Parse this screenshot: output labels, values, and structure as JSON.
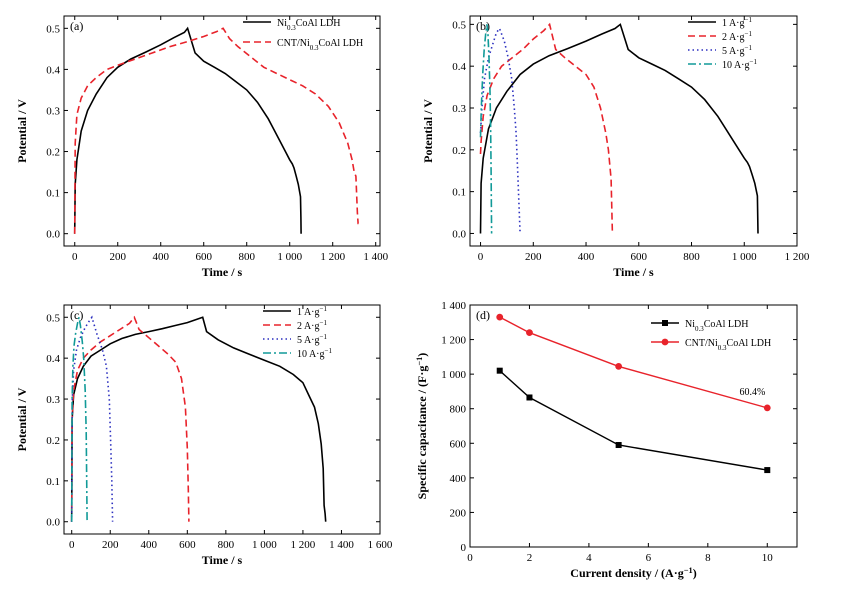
{
  "chart_data": [
    {
      "id": "a",
      "type": "line",
      "panel_label": "(a)",
      "xlabel": "Time / s",
      "ylabel": "Potential / V",
      "xlim": [
        -50,
        1420
      ],
      "ylim": [
        -0.03,
        0.53
      ],
      "xticks": [
        0,
        200,
        400,
        600,
        800,
        1000,
        1200,
        1400
      ],
      "xtick_labels": [
        "0",
        "200",
        "400",
        "600",
        "800",
        "1 000",
        "1 200",
        "1 400"
      ],
      "yticks": [
        0.0,
        0.1,
        0.2,
        0.3,
        0.4,
        0.5
      ],
      "ytick_labels": [
        "0.0",
        "0.1",
        "0.2",
        "0.3",
        "0.4",
        "0.5"
      ],
      "legend_position": "top-right",
      "series": [
        {
          "name": "Ni0.3CoAl LDH",
          "name_parts": [
            [
              "Ni",
              false
            ],
            [
              "0.3",
              true
            ],
            [
              "CoAl LDH",
              false
            ]
          ],
          "color": "#000000",
          "dash": "solid",
          "x": [
            0,
            2,
            10,
            30,
            60,
            100,
            150,
            200,
            260,
            330,
            400,
            460,
            510,
            525,
            560,
            600,
            650,
            700,
            750,
            800,
            850,
            900,
            950,
            980,
            1000,
            1012,
            1020,
            1030,
            1040,
            1050,
            1052,
            1053
          ],
          "y": [
            0.0,
            0.12,
            0.18,
            0.25,
            0.3,
            0.34,
            0.38,
            0.405,
            0.425,
            0.442,
            0.46,
            0.477,
            0.49,
            0.5,
            0.44,
            0.42,
            0.405,
            0.39,
            0.37,
            0.35,
            0.32,
            0.28,
            0.23,
            0.2,
            0.18,
            0.17,
            0.16,
            0.14,
            0.12,
            0.09,
            0.04,
            0.0
          ]
        },
        {
          "name": "CNT/Ni0.3CoAl LDH",
          "name_parts": [
            [
              "CNT/Ni",
              false
            ],
            [
              "0.3",
              true
            ],
            [
              "CoAl LDH",
              false
            ]
          ],
          "color": "#e8232b",
          "dash": "dashed",
          "x": [
            0,
            2,
            10,
            30,
            60,
            100,
            150,
            200,
            280,
            360,
            440,
            520,
            600,
            660,
            690,
            720,
            760,
            820,
            880,
            940,
            1000,
            1060,
            1120,
            1180,
            1230,
            1270,
            1290,
            1300,
            1308,
            1315,
            1318,
            1320
          ],
          "y": [
            0.0,
            0.22,
            0.29,
            0.33,
            0.36,
            0.38,
            0.4,
            0.41,
            0.425,
            0.44,
            0.455,
            0.467,
            0.48,
            0.492,
            0.5,
            0.475,
            0.455,
            0.43,
            0.405,
            0.39,
            0.375,
            0.36,
            0.34,
            0.31,
            0.27,
            0.22,
            0.18,
            0.15,
            0.14,
            0.05,
            0.025,
            0.025
          ]
        }
      ]
    },
    {
      "id": "b",
      "type": "line",
      "panel_label": "(b)",
      "xlabel": "Time / s",
      "ylabel": "Potential / V",
      "xlim": [
        -40,
        1200
      ],
      "ylim": [
        -0.03,
        0.52
      ],
      "xticks": [
        0,
        200,
        400,
        600,
        800,
        1000,
        1200
      ],
      "xtick_labels": [
        "0",
        "200",
        "400",
        "600",
        "800",
        "1 000",
        "1 200"
      ],
      "yticks": [
        0.0,
        0.1,
        0.2,
        0.3,
        0.4,
        0.5
      ],
      "ytick_labels": [
        "0.0",
        "0.1",
        "0.2",
        "0.3",
        "0.4",
        "0.5"
      ],
      "legend_position": "top-right",
      "series": [
        {
          "name": "1 A·g⁻¹",
          "name_parts": [
            [
              "1 A·g",
              false
            ],
            [
              "−1",
              "sup"
            ]
          ],
          "color": "#000000",
          "dash": "solid",
          "x": [
            0,
            2,
            10,
            30,
            60,
            100,
            150,
            200,
            260,
            330,
            400,
            460,
            510,
            530,
            560,
            600,
            650,
            700,
            750,
            800,
            850,
            900,
            950,
            980,
            1000,
            1012,
            1020,
            1030,
            1040,
            1050,
            1052
          ],
          "y": [
            0.0,
            0.12,
            0.18,
            0.25,
            0.3,
            0.34,
            0.38,
            0.405,
            0.425,
            0.442,
            0.46,
            0.477,
            0.49,
            0.5,
            0.44,
            0.42,
            0.405,
            0.39,
            0.37,
            0.35,
            0.32,
            0.28,
            0.23,
            0.2,
            0.18,
            0.17,
            0.16,
            0.14,
            0.12,
            0.09,
            0.0
          ]
        },
        {
          "name": "2 A·g⁻¹",
          "name_parts": [
            [
              "2 A·g",
              false
            ],
            [
              "−1",
              "sup"
            ]
          ],
          "color": "#e8232b",
          "dash": "dashed",
          "x": [
            0,
            2,
            10,
            25,
            50,
            80,
            120,
            160,
            200,
            240,
            262,
            285,
            320,
            360,
            400,
            430,
            455,
            475,
            485,
            495,
            500
          ],
          "y": [
            0.19,
            0.22,
            0.28,
            0.33,
            0.37,
            0.4,
            0.42,
            0.44,
            0.465,
            0.485,
            0.5,
            0.44,
            0.42,
            0.4,
            0.38,
            0.35,
            0.3,
            0.24,
            0.2,
            0.13,
            0.0
          ]
        },
        {
          "name": "5 A·g⁻¹",
          "name_parts": [
            [
              "5 A·g",
              false
            ],
            [
              "−1",
              "sup"
            ]
          ],
          "color": "#2b2fbf",
          "dash": "dotted",
          "x": [
            0,
            5,
            15,
            30,
            45,
            60,
            72,
            90,
            105,
            118,
            128,
            135,
            140,
            145,
            150
          ],
          "y": [
            0.24,
            0.3,
            0.37,
            0.42,
            0.45,
            0.48,
            0.49,
            0.46,
            0.42,
            0.37,
            0.3,
            0.24,
            0.16,
            0.08,
            0.0
          ]
        },
        {
          "name": "10 A·g⁻¹",
          "name_parts": [
            [
              "10 A·g",
              false
            ],
            [
              "−1",
              "sup"
            ]
          ],
          "color": "#119a98",
          "dash": "dashdot",
          "x": [
            0,
            3,
            8,
            14,
            20,
            24,
            28,
            32,
            36,
            38,
            40,
            42
          ],
          "y": [
            0.23,
            0.3,
            0.38,
            0.44,
            0.48,
            0.5,
            0.48,
            0.42,
            0.34,
            0.26,
            0.15,
            0.0
          ]
        }
      ]
    },
    {
      "id": "c",
      "type": "line",
      "panel_label": "(c)",
      "xlabel": "Time / s",
      "ylabel": "Potential / V",
      "xlim": [
        -40,
        1600
      ],
      "ylim": [
        -0.03,
        0.53
      ],
      "xticks": [
        0,
        200,
        400,
        600,
        800,
        1000,
        1200,
        1400,
        1600
      ],
      "xtick_labels": [
        "0",
        "200",
        "400",
        "600",
        "800",
        "1 000",
        "1 200",
        "1 400",
        "1 600"
      ],
      "yticks": [
        0.0,
        0.1,
        0.2,
        0.3,
        0.4,
        0.5
      ],
      "ytick_labels": [
        "0.0",
        "0.1",
        "0.2",
        "0.3",
        "0.4",
        "0.5"
      ],
      "legend_position": "top-right",
      "series": [
        {
          "name": "1 A·g⁻¹",
          "name_parts": [
            [
              "1 A·g",
              false
            ],
            [
              "−1",
              "sup"
            ]
          ],
          "color": "#000000",
          "dash": "solid",
          "x": [
            0,
            2,
            10,
            30,
            60,
            100,
            150,
            200,
            260,
            330,
            400,
            470,
            540,
            600,
            650,
            680,
            700,
            760,
            840,
            920,
            1000,
            1080,
            1150,
            1200,
            1230,
            1260,
            1280,
            1295,
            1305,
            1310,
            1315,
            1318
          ],
          "y": [
            0.0,
            0.25,
            0.31,
            0.35,
            0.38,
            0.405,
            0.42,
            0.435,
            0.448,
            0.458,
            0.465,
            0.472,
            0.48,
            0.487,
            0.495,
            0.5,
            0.465,
            0.445,
            0.425,
            0.41,
            0.395,
            0.38,
            0.36,
            0.34,
            0.31,
            0.28,
            0.24,
            0.19,
            0.13,
            0.04,
            0.02,
            0.0
          ]
        },
        {
          "name": "2 A·g⁻¹",
          "name_parts": [
            [
              "2 A·g",
              false
            ],
            [
              "−1",
              "sup"
            ]
          ],
          "color": "#e8232b",
          "dash": "dashed",
          "x": [
            0,
            2,
            10,
            30,
            60,
            100,
            150,
            200,
            250,
            300,
            325,
            350,
            400,
            450,
            500,
            540,
            570,
            590,
            600,
            605,
            608
          ],
          "y": [
            0.0,
            0.25,
            0.32,
            0.37,
            0.4,
            0.42,
            0.44,
            0.455,
            0.47,
            0.485,
            0.5,
            0.47,
            0.45,
            0.43,
            0.41,
            0.39,
            0.35,
            0.28,
            0.18,
            0.08,
            0.0
          ]
        },
        {
          "name": "5 A·g⁻¹",
          "name_parts": [
            [
              "5 A·g",
              false
            ],
            [
              "−1",
              "sup"
            ]
          ],
          "color": "#2b2fbf",
          "dash": "dotted",
          "x": [
            0,
            3,
            10,
            25,
            45,
            70,
            90,
            105,
            130,
            160,
            180,
            195,
            202,
            208,
            212
          ],
          "y": [
            0.0,
            0.3,
            0.37,
            0.42,
            0.45,
            0.475,
            0.49,
            0.5,
            0.46,
            0.42,
            0.38,
            0.3,
            0.2,
            0.1,
            0.0
          ]
        },
        {
          "name": "10 A·g⁻¹",
          "name_parts": [
            [
              "10 A·g",
              false
            ],
            [
              "−1",
              "sup"
            ]
          ],
          "color": "#119a98",
          "dash": "dashdot",
          "x": [
            0,
            2,
            6,
            12,
            20,
            30,
            38,
            45,
            55,
            62,
            70,
            75,
            78,
            80
          ],
          "y": [
            0.0,
            0.3,
            0.38,
            0.43,
            0.46,
            0.485,
            0.5,
            0.48,
            0.44,
            0.4,
            0.32,
            0.22,
            0.1,
            0.0
          ]
        }
      ]
    },
    {
      "id": "d",
      "type": "line",
      "panel_label": "(d)",
      "xlabel": "Current density / (A·g⁻¹)",
      "xlabel_parts": [
        [
          "Current density / (A·g",
          false
        ],
        [
          "−1",
          "sup"
        ],
        [
          ")",
          false
        ]
      ],
      "ylabel": "Specific capacitance / (F·g⁻¹)",
      "ylabel_parts": [
        [
          "Specific capacitance / (F·g",
          false
        ],
        [
          "−1",
          "sup"
        ],
        [
          ")",
          false
        ]
      ],
      "xlim": [
        0,
        11
      ],
      "ylim": [
        0,
        1400
      ],
      "xticks": [
        0,
        2,
        4,
        6,
        8,
        10
      ],
      "xtick_labels": [
        "0",
        "2",
        "4",
        "6",
        "8",
        "10"
      ],
      "yticks": [
        0,
        200,
        400,
        600,
        800,
        1000,
        1200,
        1400
      ],
      "ytick_labels": [
        "0",
        "200",
        "400",
        "600",
        "800",
        "1 000",
        "1 200",
        "1 400"
      ],
      "legend_position": "top-right",
      "annotation": {
        "text": "60.4%",
        "x": 9.5,
        "y": 880
      },
      "series": [
        {
          "name": "Ni0.3CoAl LDH",
          "name_parts": [
            [
              "Ni",
              false
            ],
            [
              "0.3",
              true
            ],
            [
              "CoAl LDH",
              false
            ]
          ],
          "color": "#000000",
          "marker": "square",
          "x": [
            1,
            2,
            5,
            10
          ],
          "y": [
            1020,
            865,
            590,
            445
          ]
        },
        {
          "name": "CNT/Ni0.3CoAl LDH",
          "name_parts": [
            [
              "CNT/Ni",
              false
            ],
            [
              "0.3",
              true
            ],
            [
              "CoAl LDH",
              false
            ]
          ],
          "color": "#e8232b",
          "marker": "circle",
          "x": [
            1,
            2,
            5,
            10
          ],
          "y": [
            1330,
            1240,
            1045,
            805
          ]
        }
      ]
    }
  ]
}
